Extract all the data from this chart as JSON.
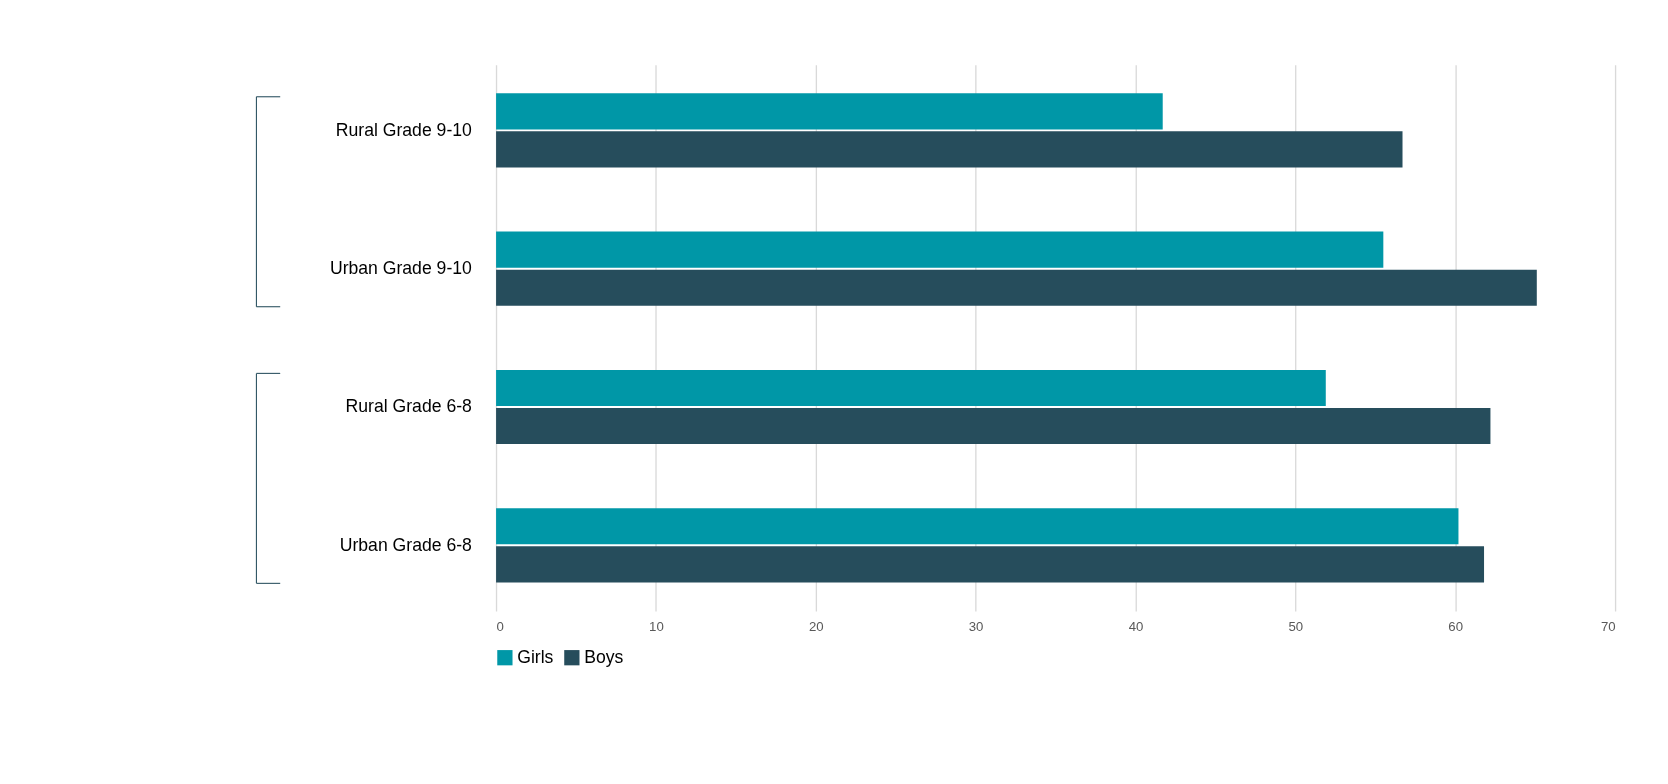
{
  "chart_data": {
    "type": "bar",
    "orientation": "horizontal",
    "categories": [
      "Rural Grade 9-10",
      "Urban Grade 9-10",
      "Rural Grade 6-8",
      "Urban Grade 6-8"
    ],
    "series": [
      {
        "name": "Girls",
        "color": "#0097a7",
        "values": [
          41.7,
          55.5,
          51.9,
          60.2
        ]
      },
      {
        "name": "Boys",
        "color": "#264d5c",
        "values": [
          56.7,
          65.1,
          62.2,
          61.8
        ]
      }
    ],
    "xlim": [
      0,
      70
    ],
    "xticks": [
      0,
      10,
      20,
      30,
      40,
      50,
      60,
      70
    ],
    "grid": "x",
    "legend": "bottom"
  }
}
